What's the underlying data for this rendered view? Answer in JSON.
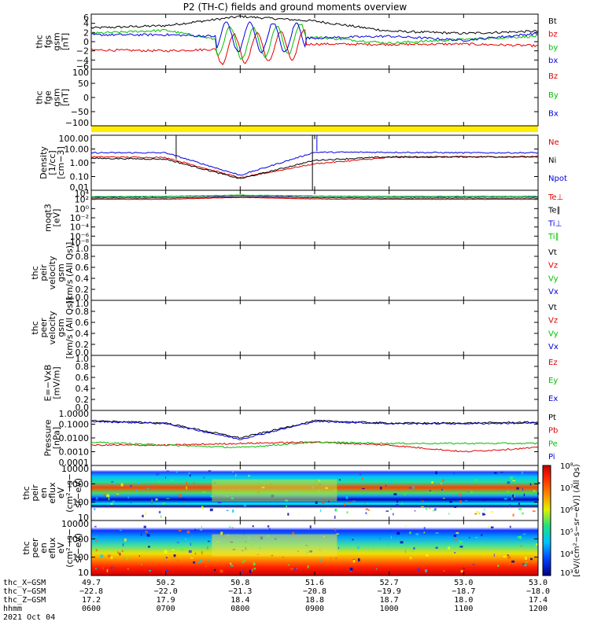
{
  "title": "P2 (TH-C) fields and ground moments overview",
  "colors": {
    "black": "#000000",
    "red": "#e00000",
    "green": "#00c000",
    "blue": "#0000e0",
    "yellow": "#ffee00"
  },
  "panels": [
    {
      "id": "fgs",
      "ylabel": [
        "thc",
        "fgs",
        "gsm",
        "[nT]"
      ],
      "ticks": [
        "6",
        "4",
        "2",
        "0",
        "−2",
        "−4",
        "−6"
      ],
      "ylim": [
        -6,
        6
      ],
      "legend": [
        {
          "t": "Bt",
          "c": "black"
        },
        {
          "t": "bz",
          "c": "red"
        },
        {
          "t": "by",
          "c": "green"
        },
        {
          "t": "bx",
          "c": "blue"
        }
      ]
    },
    {
      "id": "fge",
      "ylabel": [
        "thc",
        "fge",
        "gsm",
        "[nT]"
      ],
      "ticks": [
        "100",
        "50",
        "0",
        "−50",
        "−100"
      ],
      "ylim": [
        -120,
        100
      ],
      "legend": [
        {
          "t": "Bz",
          "c": "red"
        },
        {
          "t": "By",
          "c": "green"
        },
        {
          "t": "Bx",
          "c": "blue"
        }
      ]
    },
    {
      "id": "density",
      "ylabel": [
        "Density",
        "[1/cc]",
        "[cm−3]"
      ],
      "ticks": [
        "100.00",
        "10.00",
        "1.00",
        "0.10",
        "0.01"
      ],
      "ylim": [
        0.005,
        300
      ],
      "scale": "log",
      "legend": [
        {
          "t": "Ne",
          "c": "red"
        },
        {
          "t": "Ni",
          "c": "black"
        },
        {
          "t": "Npot",
          "c": "blue"
        }
      ]
    },
    {
      "id": "temp",
      "ylabel": [
        "moqt3",
        "[eV]"
      ],
      "ticks": [
        "10⁴",
        "10²",
        "10⁰",
        "10⁻²",
        "10⁻⁴",
        "10⁻⁶",
        "10⁻⁸"
      ],
      "ylim": [
        1e-09,
        100000.0
      ],
      "scale": "log",
      "legend": [
        {
          "t": "Te⊥",
          "c": "red"
        },
        {
          "t": "Te∥",
          "c": "black"
        },
        {
          "t": "Ti⊥",
          "c": "blue"
        },
        {
          "t": "Ti∥",
          "c": "green"
        }
      ]
    },
    {
      "id": "peir",
      "ylabel": [
        "thc",
        "peir",
        "velocity",
        "gsm",
        "[km/s (All Qs)]"
      ],
      "ticks": [
        "1.0",
        "0.8",
        "0.6",
        "0.4",
        "0.2",
        "0.0"
      ],
      "ylim": [
        0,
        1
      ],
      "legend": [
        {
          "t": "Vt",
          "c": "black"
        },
        {
          "t": "Vz",
          "c": "red"
        },
        {
          "t": "Vy",
          "c": "green"
        },
        {
          "t": "Vx",
          "c": "blue"
        }
      ]
    },
    {
      "id": "peer",
      "ylabel": [
        "thc",
        "peer",
        "velocity",
        "gsm",
        "[km/s (All Qs)]"
      ],
      "ticks": [
        "1.0",
        "0.8",
        "0.6",
        "0.4",
        "0.2",
        "0.0"
      ],
      "ylim": [
        0,
        1
      ],
      "legend": [
        {
          "t": "Vt",
          "c": "black"
        },
        {
          "t": "Vz",
          "c": "red"
        },
        {
          "t": "Vy",
          "c": "green"
        },
        {
          "t": "Vx",
          "c": "blue"
        }
      ]
    },
    {
      "id": "efield",
      "ylabel": [
        "E=−VxB",
        "[mV/m]"
      ],
      "ticks": [
        "1.0",
        "0.8",
        "0.6",
        "0.4",
        "0.2",
        "0.0"
      ],
      "ylim": [
        0,
        1
      ],
      "legend": [
        {
          "t": "Ez",
          "c": "red"
        },
        {
          "t": "Ey",
          "c": "green"
        },
        {
          "t": "Ex",
          "c": "blue"
        }
      ]
    },
    {
      "id": "pressure",
      "ylabel": [
        "Pressure",
        "[nPa]"
      ],
      "ticks": [
        "1.0000",
        "0.1000",
        "0.0100",
        "0.0010",
        "0.0001"
      ],
      "ylim": [
        0.0001,
        1
      ],
      "scale": "log",
      "legend": [
        {
          "t": "Pt",
          "c": "black"
        },
        {
          "t": "Pb",
          "c": "red"
        },
        {
          "t": "Pe",
          "c": "green"
        },
        {
          "t": "Pi",
          "c": "blue"
        }
      ]
    },
    {
      "id": "peir_spec",
      "ylabel": [
        "thc",
        "peir",
        "en",
        "eflux",
        "eV",
        "(cm²−s−",
        "sr−eV)"
      ],
      "ticks": [
        "10000",
        "1000",
        "100",
        "10"
      ],
      "ylim": [
        5,
        20000
      ],
      "scale": "log"
    },
    {
      "id": "peer_spec",
      "ylabel": [
        "thc",
        "peer",
        "en",
        "eflux",
        "eV",
        "(cm²−s−",
        "sr−eV)"
      ],
      "ticks": [
        "10000",
        "1000",
        "100",
        "10"
      ],
      "ylim": [
        5,
        20000
      ],
      "scale": "log"
    }
  ],
  "colorbar": {
    "ticks": [
      "10⁸",
      "10⁷",
      "10⁶",
      "10⁵",
      "10⁴",
      "10³"
    ],
    "label": "[eV/(cm²−s−sr−eV)] (All Qs)"
  },
  "time_axis": {
    "row_labels": [
      "thc_X−GSM",
      "thc_Y−GSM",
      "thc_Z−GSM",
      "hhmm",
      "2021 Oct 04"
    ],
    "columns": [
      {
        "x": "49.7",
        "y": "−22.8",
        "z": "17.2",
        "t": "0600"
      },
      {
        "x": "50.2",
        "y": "−22.0",
        "z": "17.9",
        "t": "0700"
      },
      {
        "x": "50.8",
        "y": "−21.3",
        "z": "18.4",
        "t": "0800"
      },
      {
        "x": "51.6",
        "y": "−20.8",
        "z": "18.8",
        "t": "0900"
      },
      {
        "x": "52.7",
        "y": "−19.9",
        "z": "18.7",
        "t": "1000"
      },
      {
        "x": "53.0",
        "y": "−18.7",
        "z": "18.0",
        "t": "1100"
      },
      {
        "x": "53.0",
        "y": "−18.0",
        "z": "17.4",
        "t": "1200"
      }
    ]
  },
  "chart_data": {
    "type": "line",
    "x": [
      "0600",
      "0700",
      "0800",
      "0900",
      "1000",
      "1100",
      "1200"
    ],
    "xlabel": "hhmm",
    "series": [
      {
        "name": "Bt",
        "panel": "fgs",
        "values": [
          3.0,
          3.5,
          5.5,
          4.5,
          2.3,
          1.8,
          2.3
        ]
      },
      {
        "name": "bz",
        "panel": "fgs",
        "values": [
          -1.8,
          -2.0,
          -1.5,
          -0.5,
          -0.6,
          -0.5,
          -0.9
        ]
      },
      {
        "name": "by",
        "panel": "fgs",
        "values": [
          1.8,
          2.5,
          -0.5,
          1.0,
          -0.3,
          0.5,
          1.2
        ]
      },
      {
        "name": "bx",
        "panel": "fgs",
        "values": [
          1.5,
          1.5,
          1.0,
          0.8,
          1.2,
          0.3,
          1.8
        ]
      },
      {
        "name": "Ne",
        "panel": "density",
        "values": [
          4.0,
          3.5,
          0.06,
          1.0,
          3.5,
          4.0,
          4.0
        ]
      },
      {
        "name": "Ni",
        "panel": "density",
        "values": [
          3.0,
          2.5,
          0.05,
          2.0,
          4.0,
          4.0,
          4.0
        ]
      },
      {
        "name": "Npot",
        "panel": "density",
        "values": [
          9.0,
          9.0,
          0.1,
          10.0,
          10.0,
          9.0,
          9.0
        ]
      },
      {
        "name": "Te⊥",
        "panel": "temp",
        "values": [
          500,
          500,
          1500,
          600,
          500,
          500,
          500
        ]
      },
      {
        "name": "Te∥",
        "panel": "temp",
        "values": [
          1000,
          1000,
          2500,
          1200,
          1000,
          1000,
          1000
        ]
      },
      {
        "name": "Ti⊥",
        "panel": "temp",
        "values": [
          2000,
          2500,
          5000,
          3000,
          2500,
          2500,
          2500
        ]
      },
      {
        "name": "Ti∥",
        "panel": "temp",
        "values": [
          2500,
          3000,
          6000,
          3500,
          3000,
          3000,
          3000
        ]
      },
      {
        "name": "Pt",
        "panel": "pressure",
        "values": [
          0.18,
          0.12,
          0.01,
          0.18,
          0.12,
          0.12,
          0.14
        ]
      },
      {
        "name": "Pb",
        "panel": "pressure",
        "values": [
          0.003,
          0.003,
          0.004,
          0.005,
          0.003,
          0.001,
          0.002
        ]
      },
      {
        "name": "Pe",
        "panel": "pressure",
        "values": [
          0.005,
          0.003,
          0.002,
          0.005,
          0.004,
          0.004,
          0.004
        ]
      },
      {
        "name": "Pi",
        "panel": "pressure",
        "values": [
          0.16,
          0.11,
          0.008,
          0.16,
          0.11,
          0.11,
          0.12
        ]
      }
    ]
  }
}
